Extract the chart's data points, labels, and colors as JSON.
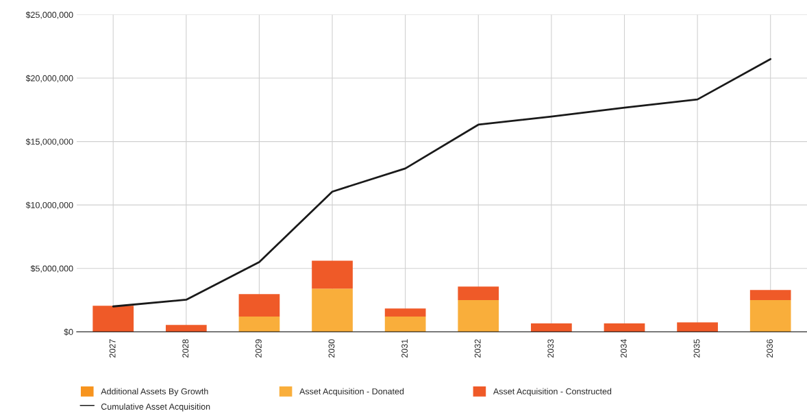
{
  "chart_data": {
    "type": "bar",
    "stacked": true,
    "categories": [
      "2027",
      "2028",
      "2029",
      "2030",
      "2031",
      "2032",
      "2033",
      "2034",
      "2035",
      "2036"
    ],
    "series": [
      {
        "name": "Additional Assets By Growth",
        "color": "#f7941e",
        "values": [
          0,
          0,
          0,
          0,
          0,
          0,
          0,
          0,
          0,
          0
        ]
      },
      {
        "name": "Asset Acquisition - Donated",
        "color": "#f9ae3b",
        "values": [
          0,
          0,
          1200000,
          3400000,
          1200000,
          2500000,
          0,
          0,
          0,
          2500000
        ]
      },
      {
        "name": "Asset Acquisition - Constructed",
        "color": "#ef5a28",
        "values": [
          2050000,
          540000,
          1770000,
          2200000,
          640000,
          1070000,
          660000,
          660000,
          740000,
          800000
        ]
      },
      {
        "name": "Cumulative Asset Acquisition",
        "type": "line",
        "color": "#1a1a1a",
        "values": [
          2000000,
          2530000,
          5500000,
          11050000,
          12880000,
          16330000,
          16970000,
          17670000,
          18320000,
          21500000
        ]
      }
    ],
    "ylim": [
      0,
      25000000
    ],
    "yticks": [
      {
        "value": 0,
        "label": "$0"
      },
      {
        "value": 5000000,
        "label": "$5,000,000"
      },
      {
        "value": 10000000,
        "label": "$10,000,000"
      },
      {
        "value": 15000000,
        "label": "$15,000,000"
      },
      {
        "value": 20000000,
        "label": "$20,000,000"
      },
      {
        "value": 25000000,
        "label": "$25,000,000"
      }
    ],
    "grid": true,
    "legend": "bottom",
    "marker": "none",
    "line_style": "solid"
  }
}
